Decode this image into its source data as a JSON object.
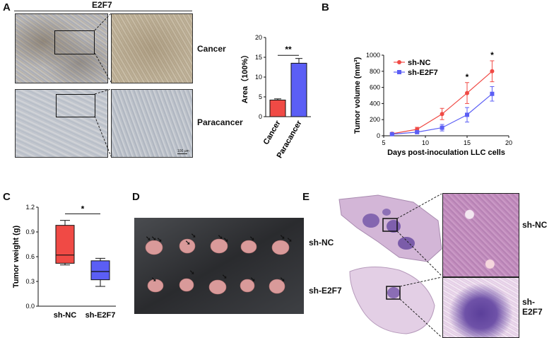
{
  "panels": {
    "A": {
      "letter": "A",
      "header": "E2F7",
      "row_labels": [
        "Cancer",
        "Paracancer"
      ],
      "scale_bar": "100 μm"
    },
    "B": {
      "letter": "B"
    },
    "C": {
      "letter": "C"
    },
    "D": {
      "letter": "D",
      "row_labels": [
        "sh-NC",
        "sh-E2F7"
      ]
    },
    "E": {
      "letter": "E",
      "row_labels": [
        "sh-NC",
        "sh-E2F7"
      ]
    }
  },
  "chart_data": [
    {
      "panel": "A",
      "type": "bar",
      "ylabel": "Area（100%）",
      "categories": [
        "Cancer",
        "Paracancer"
      ],
      "values": [
        4.2,
        13.5
      ],
      "errors": [
        0.3,
        1.2
      ],
      "ylim": [
        0,
        20
      ],
      "yticks": [
        "0",
        "5",
        "10",
        "15",
        "20"
      ],
      "colors": [
        "#f04a45",
        "#5b5ef5"
      ],
      "significance": "**"
    },
    {
      "panel": "B",
      "type": "line",
      "xlabel": "Days post-inoculation LLC cells",
      "ylabel": "Tumor volume (mm³)",
      "xlim": [
        5,
        20
      ],
      "ylim": [
        0,
        1000
      ],
      "xticks": [
        "5",
        "10",
        "15",
        "20"
      ],
      "yticks": [
        "0",
        "200",
        "400",
        "600",
        "800",
        "1000"
      ],
      "x": [
        6,
        9,
        12,
        15,
        18
      ],
      "series": [
        {
          "name": "sh-NC",
          "color": "#f04a45",
          "values": [
            25,
            80,
            270,
            530,
            800
          ],
          "errors": [
            10,
            25,
            70,
            130,
            130
          ]
        },
        {
          "name": "sh-E2F7",
          "color": "#5b5ef5",
          "values": [
            20,
            45,
            100,
            260,
            520
          ],
          "errors": [
            8,
            15,
            40,
            90,
            90
          ]
        }
      ],
      "significance": [
        {
          "x": 15,
          "mark": "*"
        },
        {
          "x": 18,
          "mark": "*"
        }
      ]
    },
    {
      "panel": "C",
      "type": "box",
      "ylabel": "Tumor weight (g)",
      "categories": [
        "sh-NC",
        "sh-E2F7"
      ],
      "ylim": [
        0,
        1.2
      ],
      "yticks": [
        "0.0",
        "0.3",
        "0.6",
        "0.9",
        "1.2"
      ],
      "boxes": [
        {
          "min": 0.5,
          "q1": 0.52,
          "median": 0.62,
          "q3": 0.98,
          "max": 1.04,
          "color": "#f04a45"
        },
        {
          "min": 0.24,
          "q1": 0.32,
          "median": 0.42,
          "q3": 0.55,
          "max": 0.58,
          "color": "#5b5ef5"
        }
      ],
      "significance": "*"
    }
  ]
}
